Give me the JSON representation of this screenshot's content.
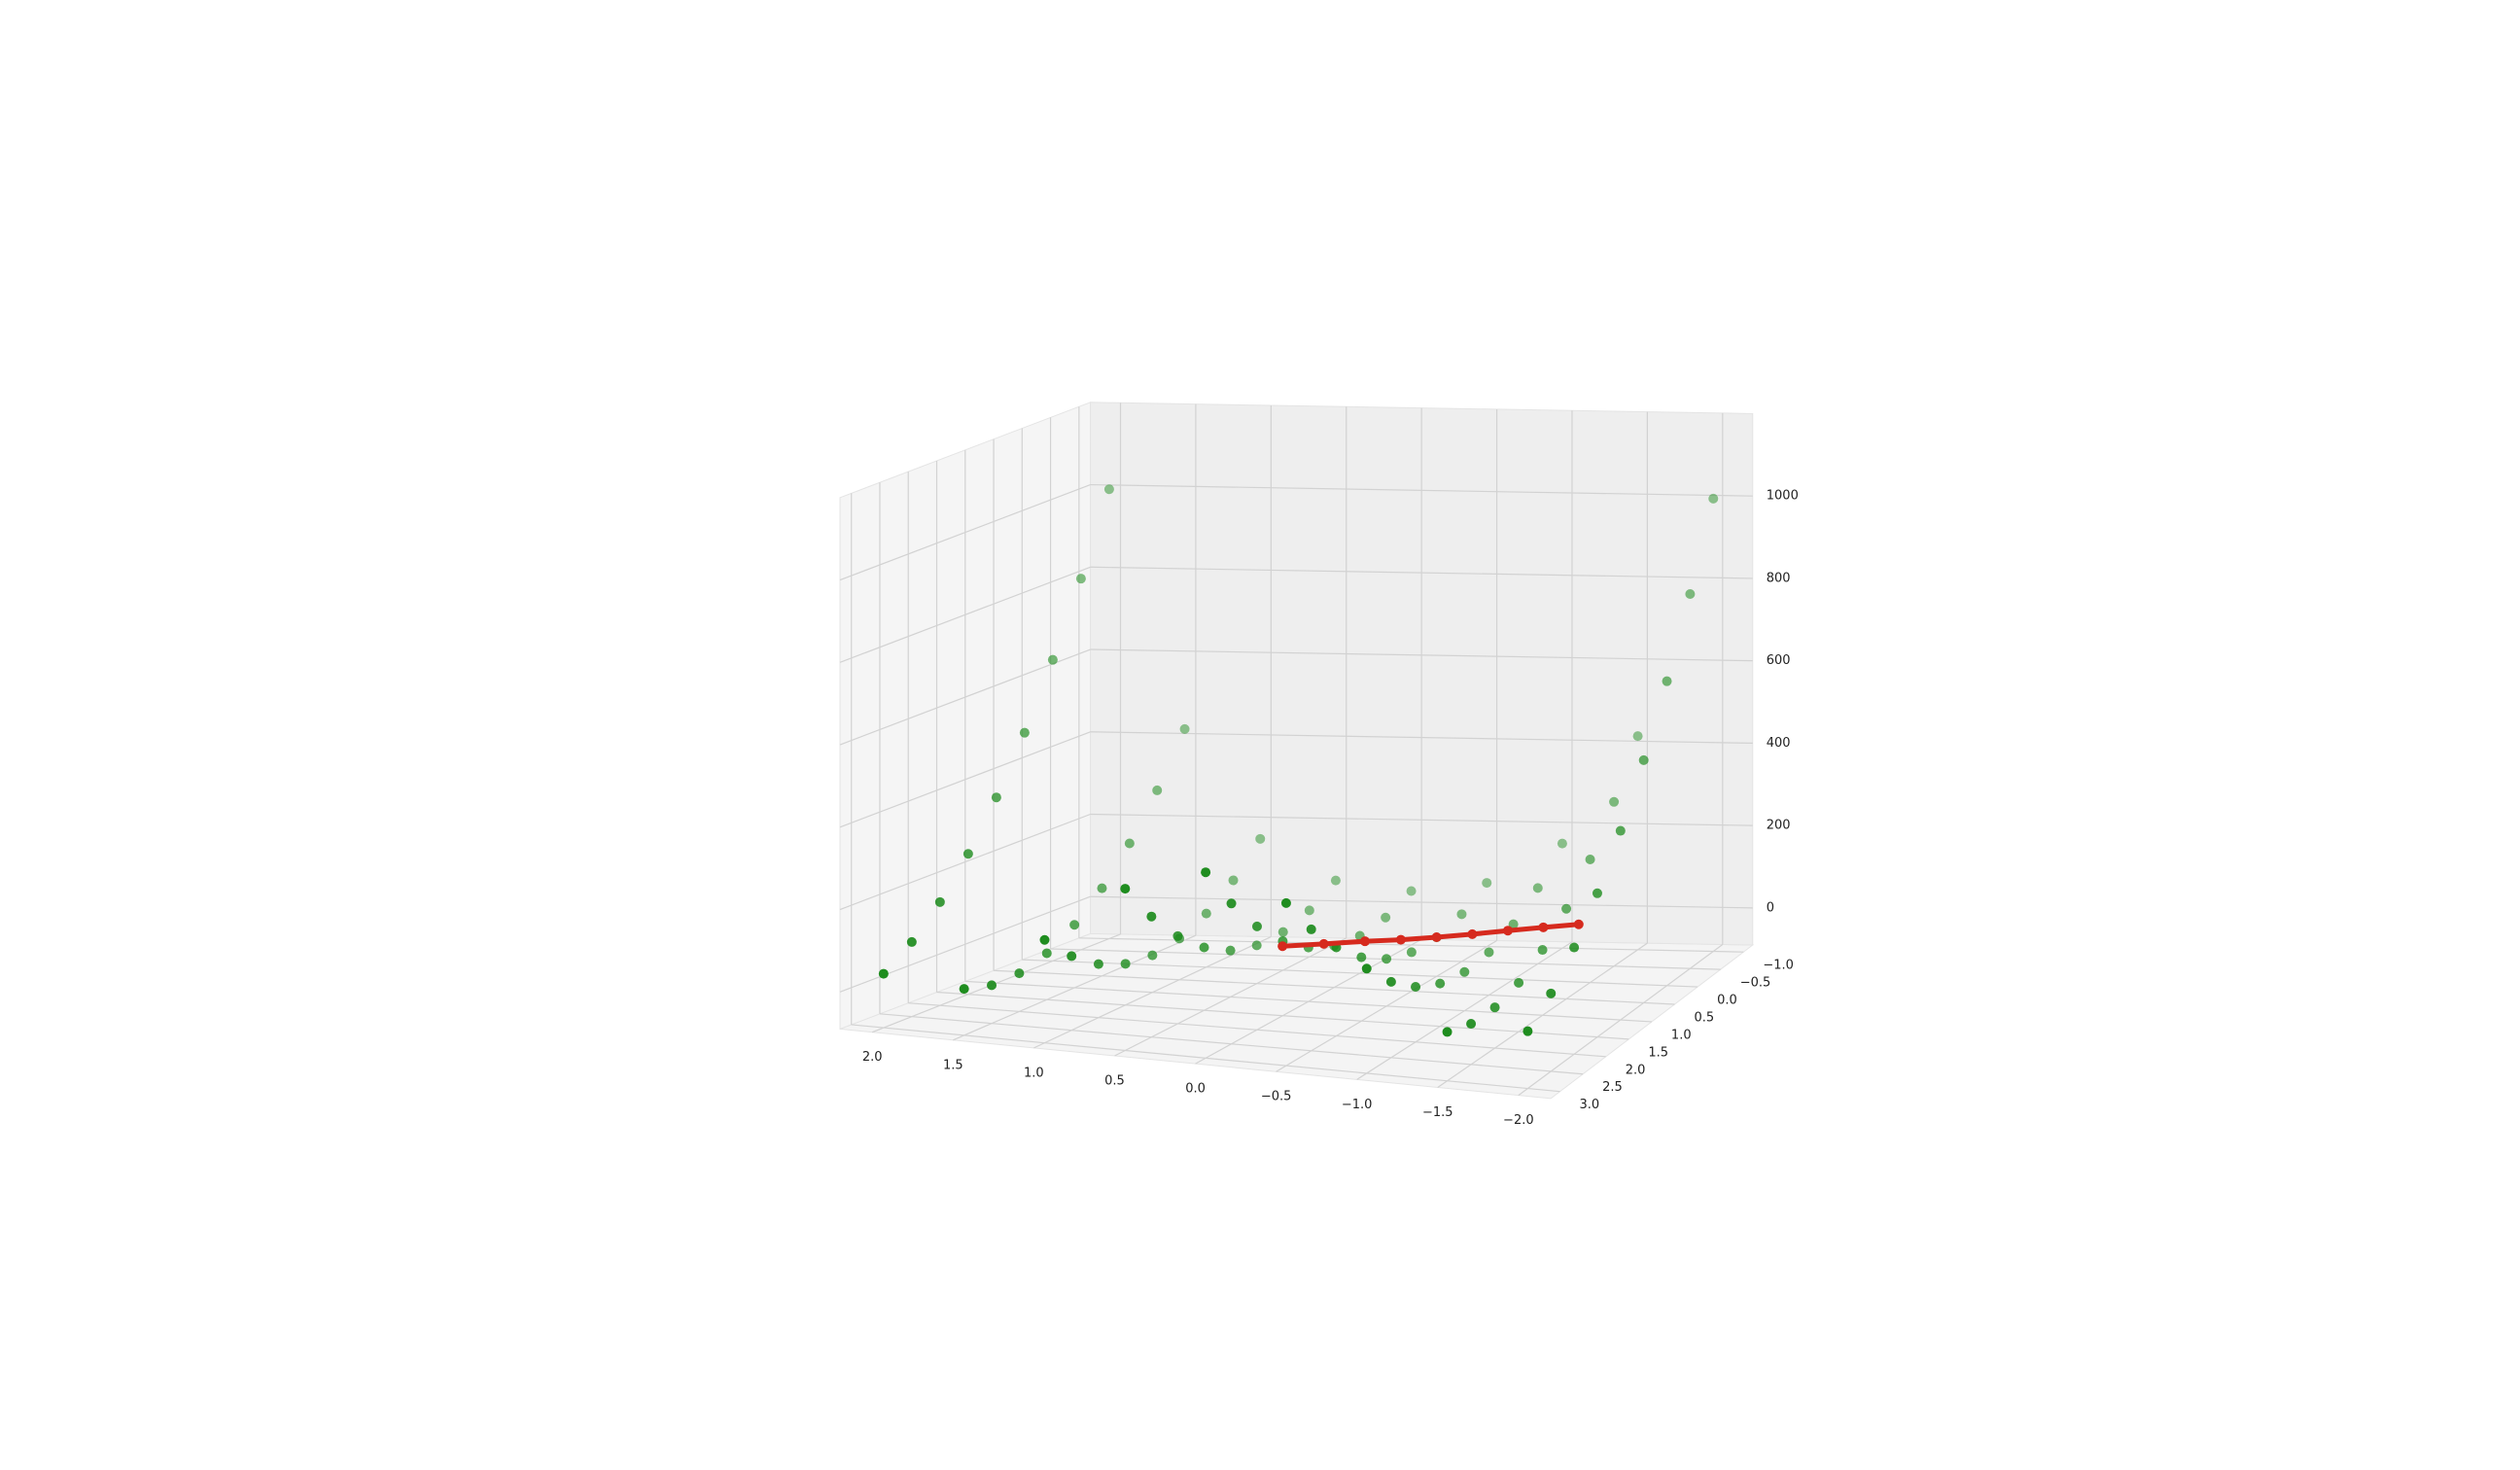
{
  "chart_data": {
    "type": "scatter3d",
    "xlim": [
      -2.2,
      2.2
    ],
    "ylim": [
      -1.2,
      3.2
    ],
    "zlim": [
      -90,
      1200
    ],
    "xticks": [
      {
        "value": -2,
        "label": "−2.0"
      },
      {
        "value": -1.5,
        "label": "−1.5"
      },
      {
        "value": -1,
        "label": "−1.0"
      },
      {
        "value": -0.5,
        "label": "−0.5"
      },
      {
        "value": 0,
        "label": "0.0"
      },
      0.5,
      {
        "value": 1,
        "label": "1.0"
      },
      1.5,
      {
        "value": 2,
        "label": "2.0"
      }
    ],
    "yticks": [
      {
        "value": -1,
        "label": "−1.0"
      },
      {
        "value": -0.5,
        "label": "−0.5"
      },
      {
        "value": 0,
        "label": "0.0"
      },
      0.5,
      {
        "value": 1,
        "label": "1.0"
      },
      1.5,
      {
        "value": 2,
        "label": "2.0"
      },
      2.5,
      {
        "value": 3,
        "label": "3.0"
      }
    ],
    "zticks": [
      0,
      200,
      400,
      600,
      800,
      1000
    ],
    "grid": true,
    "series": [
      {
        "color": "#1a8a1a",
        "x": [
          -2,
          -1.5,
          -1,
          -0.5,
          0,
          0.5,
          1,
          1.5,
          2
        ],
        "y": [
          -1,
          -0.5,
          0,
          0.5,
          1,
          1.5,
          2,
          2.5,
          3
        ],
        "z": [
          [
            1009,
            819,
            649,
            499,
            369,
            259,
            169,
            99,
            49
          ],
          [
            428.75,
            308.75,
            208.75,
            128.75,
            68.75,
            28.75,
            8.75,
            8.75,
            28.75
          ],
          [
            164,
            94,
            44,
            14,
            4,
            14,
            44,
            94,
            164
          ],
          [
            64.75,
            24.75,
            4.75,
            4.75,
            24.75,
            64.75,
            124.75,
            204.75,
            304.75
          ],
          [
            41,
            11,
            1,
            11,
            41,
            91,
            161,
            251,
            361
          ],
          [
            62.75,
            22.75,
            2.75,
            2.75,
            22.75,
            62.75,
            122.75,
            202.75,
            302.75
          ],
          [
            160,
            90,
            40,
            10,
            0,
            10,
            40,
            90,
            160
          ],
          [
            422.75,
            302.75,
            202.75,
            122.75,
            62.75,
            22.75,
            2.75,
            2.75,
            22.75
          ],
          [
            1001,
            811,
            641,
            491,
            361,
            251,
            161,
            91,
            41
          ]
        ]
      },
      {
        "color": "#d62a1e",
        "x": [
          0.3,
          0.1,
          -0.1,
          -0.3,
          -0.5,
          -0.7,
          -0.9,
          -1.1,
          -1.3
        ],
        "y": [
          0.6,
          0.4,
          0.2,
          0.1,
          0,
          -0.1,
          -0.2,
          -0.3,
          -0.4
        ],
        "z": [
          11,
          7,
          3,
          3,
          5,
          8,
          12,
          15,
          17
        ]
      }
    ]
  }
}
